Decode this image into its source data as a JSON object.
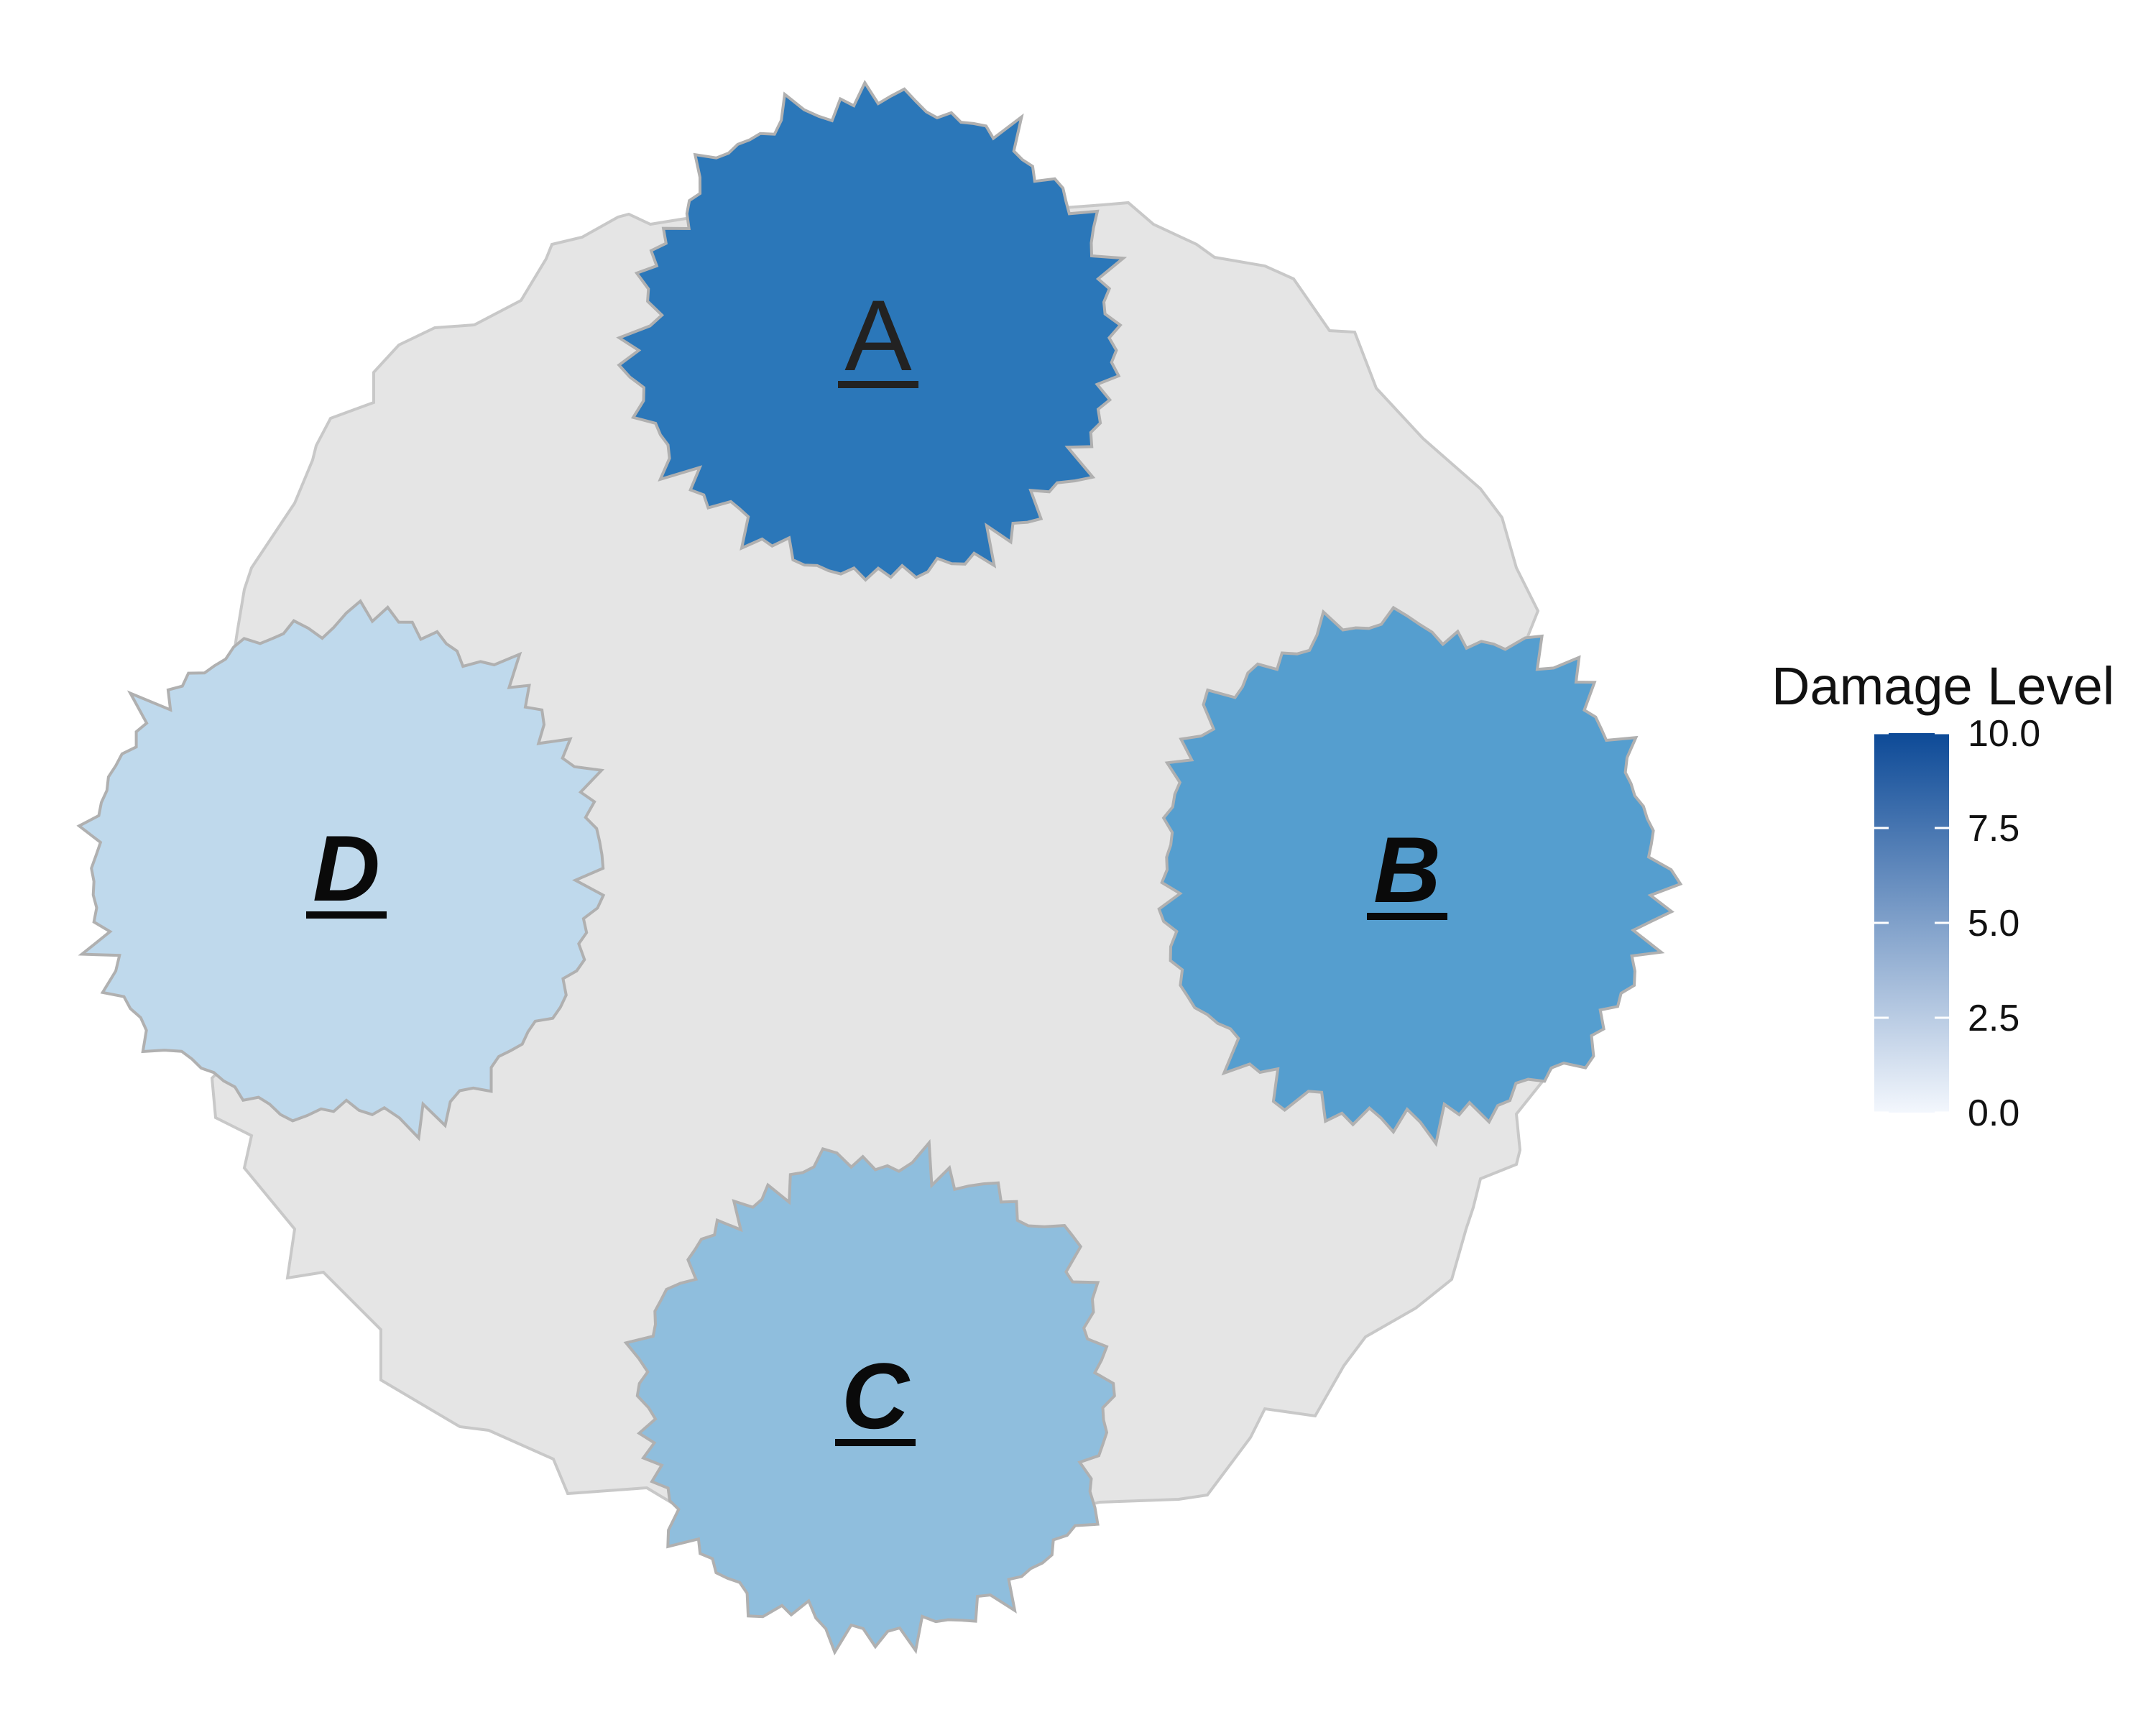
{
  "legend": {
    "title": "Damage Level",
    "ticks": [
      "10.0",
      "7.5",
      "5.0",
      "2.5",
      "0.0"
    ],
    "min": 0,
    "max": 10,
    "color_low": "#f3f7fd",
    "color_high": "#0d4a97"
  },
  "background_region": {
    "fill": "#e5e5e5",
    "stroke": "#c8c8c8"
  },
  "regions": [
    {
      "label": "A",
      "damage": 8.0,
      "fill": "#2b77b9",
      "style": "regular"
    },
    {
      "label": "B",
      "damage": 6.0,
      "fill": "#559ecf",
      "style": "bold-italic"
    },
    {
      "label": "C",
      "damage": 4.5,
      "fill": "#8fbedd",
      "style": "bold-italic"
    },
    {
      "label": "D",
      "damage": 2.5,
      "fill": "#bfd9ec",
      "style": "bold-italic"
    }
  ]
}
